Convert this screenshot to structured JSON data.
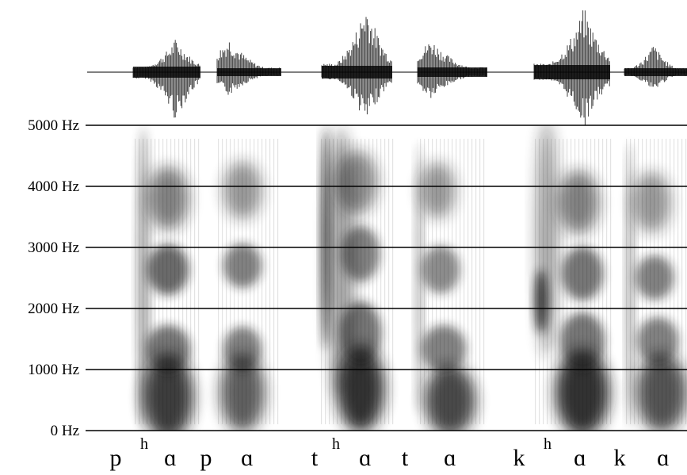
{
  "figure": {
    "y_axis_labels": [
      "5000 Hz",
      "4000 Hz",
      "3000 Hz",
      "2000 Hz",
      "1000 Hz",
      "0 Hz"
    ],
    "segments": [
      {
        "symbol": "p",
        "aspiration": "h"
      },
      {
        "symbol": "ɑ"
      },
      {
        "symbol": "p"
      },
      {
        "symbol": "ɑ"
      },
      {
        "symbol": "t",
        "aspiration": "h"
      },
      {
        "symbol": "ɑ"
      },
      {
        "symbol": "t"
      },
      {
        "symbol": "ɑ"
      },
      {
        "symbol": "k",
        "aspiration": "h"
      },
      {
        "symbol": "ɑ"
      },
      {
        "symbol": "k"
      },
      {
        "symbol": "ɑ"
      }
    ]
  },
  "chart_data": {
    "type": "heatmap",
    "ylim": [
      0,
      5000
    ],
    "yticks": [
      0,
      1000,
      2000,
      3000,
      4000,
      5000
    ],
    "ytick_labels": [
      "0 Hz",
      "1000 Hz",
      "2000 Hz",
      "3000 Hz",
      "4000 Hz",
      "5000 Hz"
    ],
    "grid": true,
    "colors": {
      "ink": "#000000",
      "background": "#ffffff"
    }
  }
}
